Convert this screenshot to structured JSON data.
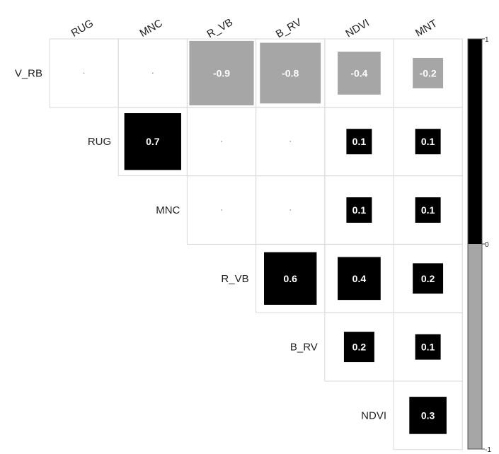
{
  "chart_data": {
    "type": "heatmap",
    "subtype": "correlation-matrix-upper-triangle",
    "row_labels": [
      "V_RB",
      "RUG",
      "MNC",
      "R_VB",
      "B_RV",
      "NDVI"
    ],
    "column_labels": [
      "RUG",
      "MNC",
      "R_VB",
      "B_RV",
      "NDVI",
      "MNT"
    ],
    "cells": [
      {
        "row": 0,
        "col": 0,
        "value": 0.0
      },
      {
        "row": 0,
        "col": 1,
        "value": 0.0
      },
      {
        "row": 0,
        "col": 2,
        "value": -0.9,
        "label": "-0.9"
      },
      {
        "row": 0,
        "col": 3,
        "value": -0.8,
        "label": "-0.8"
      },
      {
        "row": 0,
        "col": 4,
        "value": -0.4,
        "label": "-0.4"
      },
      {
        "row": 0,
        "col": 5,
        "value": -0.2,
        "label": "-0.2"
      },
      {
        "row": 1,
        "col": 1,
        "value": 0.7,
        "label": "0.7"
      },
      {
        "row": 1,
        "col": 2,
        "value": 0.0
      },
      {
        "row": 1,
        "col": 3,
        "value": 0.0
      },
      {
        "row": 1,
        "col": 4,
        "value": 0.1,
        "label": "0.1"
      },
      {
        "row": 1,
        "col": 5,
        "value": 0.1,
        "label": "0.1"
      },
      {
        "row": 2,
        "col": 2,
        "value": 0.0
      },
      {
        "row": 2,
        "col": 3,
        "value": 0.0
      },
      {
        "row": 2,
        "col": 4,
        "value": 0.1,
        "label": "0.1"
      },
      {
        "row": 2,
        "col": 5,
        "value": 0.1,
        "label": "0.1"
      },
      {
        "row": 3,
        "col": 3,
        "value": 0.6,
        "label": "0.6"
      },
      {
        "row": 3,
        "col": 4,
        "value": 0.4,
        "label": "0.4"
      },
      {
        "row": 3,
        "col": 5,
        "value": 0.2,
        "label": "0.2"
      },
      {
        "row": 4,
        "col": 4,
        "value": 0.2,
        "label": "0.2"
      },
      {
        "row": 4,
        "col": 5,
        "value": 0.1,
        "label": "0.1"
      },
      {
        "row": 5,
        "col": 5,
        "value": 0.3,
        "label": "0.3"
      }
    ],
    "color_scale": {
      "range": [
        -1,
        1
      ],
      "tick_labels": [
        "1",
        "0",
        "-1"
      ],
      "positive_color": "#000000",
      "negative_color": "#a6a6a6"
    },
    "legend": "right",
    "grid": true
  },
  "colors": {
    "grid_line": "#d9d9d9",
    "label_text": "#222222",
    "value_text": "#ffffff",
    "colorbar_border": "#555555"
  }
}
